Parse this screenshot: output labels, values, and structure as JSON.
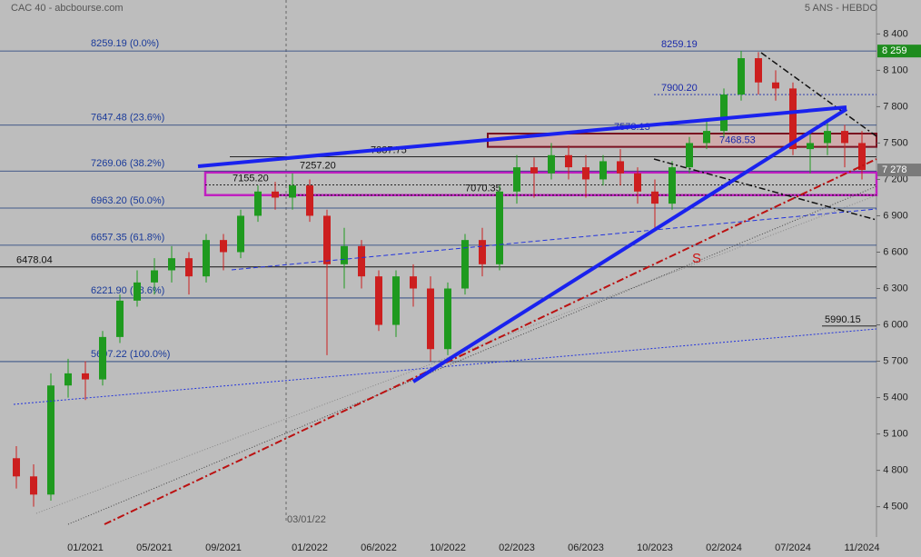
{
  "header": {
    "title": "CAC 40 - abcbourse.com",
    "period": "5 ANS - HEBDO"
  },
  "chart_data": {
    "type": "candlestick",
    "categories": [
      null,
      null,
      null,
      null,
      "01/2021",
      null,
      null,
      null,
      "05/2021",
      null,
      null,
      null,
      "09/2021",
      null,
      null,
      null,
      null,
      "01/2022",
      null,
      null,
      null,
      "06/2022",
      null,
      null,
      null,
      "10/2022",
      null,
      null,
      null,
      "02/2023",
      null,
      null,
      null,
      "06/2023",
      null,
      null,
      null,
      "10/2023",
      null,
      null,
      null,
      "02/2024",
      null,
      null,
      null,
      "07/2024",
      null,
      null,
      null,
      "11/2024"
    ],
    "open": [
      4900,
      4750,
      4600,
      5500,
      5600,
      5550,
      5900,
      6200,
      6350,
      6450,
      6550,
      6400,
      6700,
      6600,
      6900,
      7100,
      7050,
      7150,
      6900,
      6500,
      6650,
      6400,
      6000,
      6400,
      6300,
      5800,
      6300,
      6700,
      6500,
      7100,
      7300,
      7250,
      7400,
      7300,
      7200,
      7350,
      7250,
      7100,
      7000,
      7300,
      7500,
      7600,
      7900,
      8200,
      8000,
      7950,
      7450,
      7500,
      7600,
      7500
    ],
    "high": [
      5000,
      4850,
      5600,
      5720,
      5700,
      5950,
      6250,
      6450,
      6550,
      6650,
      6600,
      6750,
      6750,
      6950,
      7150,
      7180,
      7250,
      7200,
      6950,
      6800,
      6700,
      6450,
      6450,
      6500,
      6400,
      6350,
      6750,
      6800,
      7150,
      7400,
      7380,
      7500,
      7480,
      7400,
      7400,
      7450,
      7300,
      7200,
      7350,
      7550,
      7700,
      7950,
      8260,
      8250,
      8100,
      8000,
      7600,
      7700,
      7650,
      7600
    ],
    "low": [
      4650,
      4500,
      4550,
      5400,
      5380,
      5500,
      5850,
      6150,
      6250,
      6350,
      6250,
      6350,
      6450,
      6550,
      6850,
      6950,
      6950,
      6850,
      5750,
      6300,
      6300,
      5950,
      5900,
      6150,
      5700,
      5750,
      6250,
      6400,
      6450,
      7000,
      7050,
      7200,
      7200,
      7050,
      7150,
      7150,
      7000,
      6800,
      6950,
      7250,
      7450,
      7550,
      7850,
      7900,
      7850,
      7400,
      7250,
      7400,
      7300,
      7200
    ],
    "close": [
      4750,
      4600,
      5500,
      5600,
      5550,
      5900,
      6200,
      6350,
      6450,
      6550,
      6400,
      6700,
      6600,
      6900,
      7100,
      7050,
      7150,
      6900,
      6500,
      6650,
      6400,
      6000,
      6400,
      6300,
      5800,
      6300,
      6700,
      6500,
      7100,
      7300,
      7250,
      7400,
      7300,
      7200,
      7350,
      7250,
      7100,
      7000,
      7300,
      7500,
      7600,
      7900,
      8200,
      8000,
      7950,
      7450,
      7500,
      7600,
      7500,
      7278
    ],
    "up_color": "#1f9a1f",
    "down_color": "#cc1f1f",
    "ylim": [
      4250,
      8680
    ],
    "yticks": [
      {
        "value": 4500,
        "label": "4 500"
      },
      {
        "value": 4800,
        "label": "4 800"
      },
      {
        "value": 5100,
        "label": "5 100"
      },
      {
        "value": 5400,
        "label": "5 400"
      },
      {
        "value": 5700,
        "label": "5 700"
      },
      {
        "value": 6000,
        "label": "6 000"
      },
      {
        "value": 6300,
        "label": "6 300"
      },
      {
        "value": 6600,
        "label": "6 600"
      },
      {
        "value": 6900,
        "label": "6 900"
      },
      {
        "value": 7200,
        "label": "7 200"
      },
      {
        "value": 7500,
        "label": "7 500"
      },
      {
        "value": 7800,
        "label": "7 800"
      },
      {
        "value": 8100,
        "label": "8 100"
      },
      {
        "value": 8400,
        "label": "8 400"
      }
    ],
    "fib_levels": [
      {
        "label": "8259.19  (0.0%)",
        "value": 8259.19
      },
      {
        "label": "7647.48  (23.6%)",
        "value": 7647.48
      },
      {
        "label": "7269.06  (38.2%)",
        "value": 7269.06
      },
      {
        "label": "6963.20  (50.0%)",
        "value": 6963.2
      },
      {
        "label": "6657.35  (61.8%)",
        "value": 6657.35
      },
      {
        "label": "6221.90  (78.6%)",
        "value": 6221.9
      },
      {
        "label": "5697.22  (100.0%)",
        "value": 5697.22
      }
    ],
    "annotations": [
      {
        "label": "8259.19",
        "value": 8259.19
      },
      {
        "label": "7900.20",
        "value": 7900.2
      },
      {
        "label": "7578.13",
        "value": 7578.13
      },
      {
        "label": "7468.53",
        "value": 7468.53
      },
      {
        "label": "7387.75",
        "value": 7387.75
      },
      {
        "label": "7257.20",
        "value": 7257.2
      },
      {
        "label": "7155.20",
        "value": 7155.2
      },
      {
        "label": "7070.35",
        "value": 7070.35
      },
      {
        "label": "6478.04",
        "value": 6478.04
      },
      {
        "label": "5990.15",
        "value": 5990.15
      }
    ],
    "high_badge": {
      "value": 8259,
      "label": "8 259",
      "color": "#1e8c1e"
    },
    "last_badge": {
      "value": 7278,
      "label": "7 278",
      "color": "#7a7a7a"
    },
    "marker_label": "03/01/22",
    "support_label": "S"
  }
}
